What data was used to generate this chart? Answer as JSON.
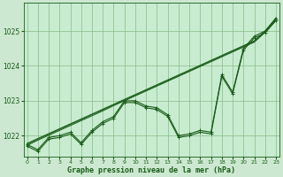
{
  "bg_color": "#cce8d0",
  "plot_bg_color": "#c8ecd0",
  "grid_color": "#88bb88",
  "line_color": "#1a5c1a",
  "xlabel": "Graphe pression niveau de la mer (hPa)",
  "x_hours": [
    0,
    1,
    2,
    3,
    4,
    5,
    6,
    7,
    8,
    9,
    10,
    11,
    12,
    13,
    14,
    15,
    16,
    17,
    18,
    19,
    20,
    21,
    22,
    23
  ],
  "ylim": [
    1021.4,
    1025.8
  ],
  "yticks": [
    1022,
    1023,
    1024,
    1025
  ],
  "series_main": [
    1021.7,
    1021.55,
    1021.9,
    1021.95,
    1022.05,
    1021.75,
    1022.1,
    1022.35,
    1022.5,
    1022.95,
    1022.95,
    1022.8,
    1022.75,
    1022.55,
    1021.95,
    1022.0,
    1022.1,
    1022.05,
    1023.7,
    1023.2,
    1024.45,
    1024.8,
    1024.95,
    1025.3
  ],
  "series_max": [
    1021.75,
    1021.6,
    1021.95,
    1022.0,
    1022.1,
    1021.8,
    1022.15,
    1022.4,
    1022.55,
    1023.0,
    1023.0,
    1022.85,
    1022.8,
    1022.6,
    1022.0,
    1022.05,
    1022.15,
    1022.1,
    1023.75,
    1023.25,
    1024.5,
    1024.85,
    1025.0,
    1025.35
  ],
  "series_trend1": [
    1021.72,
    1021.87,
    1022.01,
    1022.15,
    1022.29,
    1022.43,
    1022.57,
    1022.71,
    1022.86,
    1023.0,
    1023.14,
    1023.28,
    1023.42,
    1023.56,
    1023.7,
    1023.84,
    1023.98,
    1024.12,
    1024.26,
    1024.4,
    1024.54,
    1024.68,
    1024.96,
    1025.3
  ],
  "series_trend2": [
    1021.75,
    1021.9,
    1022.04,
    1022.18,
    1022.32,
    1022.46,
    1022.6,
    1022.74,
    1022.88,
    1023.02,
    1023.16,
    1023.3,
    1023.44,
    1023.58,
    1023.72,
    1023.86,
    1024.0,
    1024.14,
    1024.28,
    1024.42,
    1024.56,
    1024.7,
    1024.98,
    1025.35
  ],
  "series_trend3": [
    1021.78,
    1021.92,
    1022.06,
    1022.2,
    1022.34,
    1022.48,
    1022.62,
    1022.76,
    1022.9,
    1023.04,
    1023.18,
    1023.32,
    1023.46,
    1023.6,
    1023.74,
    1023.88,
    1024.02,
    1024.16,
    1024.3,
    1024.44,
    1024.58,
    1024.72,
    1025.0,
    1025.38
  ]
}
